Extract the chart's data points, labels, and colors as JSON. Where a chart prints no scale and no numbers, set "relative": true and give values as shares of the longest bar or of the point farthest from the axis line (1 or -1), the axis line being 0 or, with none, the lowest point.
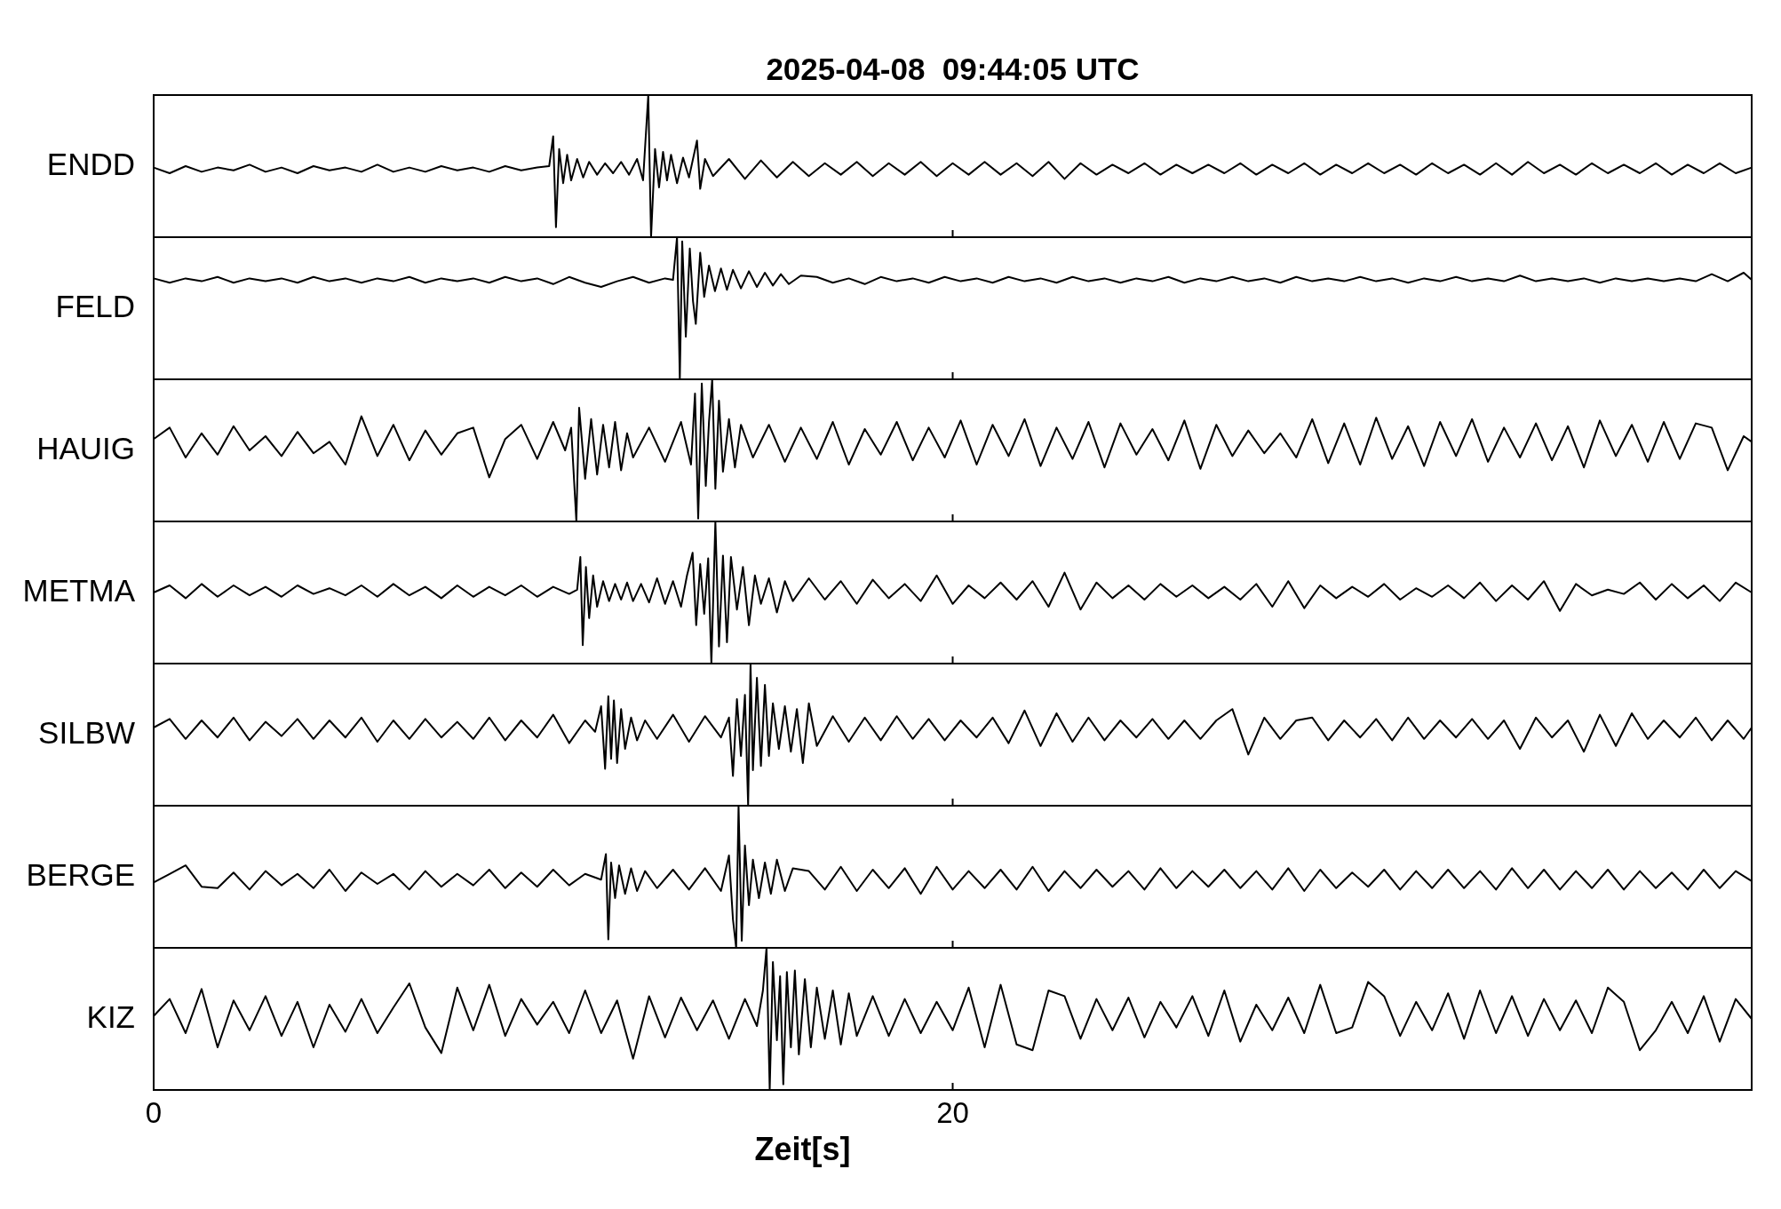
{
  "chart_data": [
    {
      "type": "line",
      "title": "2025-04-08  09:44:05 UTC",
      "ylabel": "ENDD",
      "relative": true,
      "color": "#000000",
      "xlim": [
        0,
        40
      ],
      "tick_labels": false,
      "x": [
        0,
        0.4,
        0.8,
        1.2,
        1.6,
        2,
        2.4,
        2.8,
        3.2,
        3.6,
        4,
        4.4,
        4.8,
        5.2,
        5.6,
        6,
        6.4,
        6.8,
        7.2,
        7.6,
        8,
        8.4,
        8.8,
        9.2,
        9.6,
        9.9,
        10,
        10.07,
        10.15,
        10.25,
        10.35,
        10.45,
        10.6,
        10.75,
        10.9,
        11.1,
        11.3,
        11.5,
        11.7,
        11.9,
        12.1,
        12.25,
        12.38,
        12.45,
        12.55,
        12.65,
        12.75,
        12.85,
        12.95,
        13.1,
        13.25,
        13.4,
        13.6,
        13.68,
        13.8,
        14,
        14.4,
        14.8,
        15.2,
        15.6,
        16,
        16.4,
        16.8,
        17.2,
        17.6,
        18,
        18.4,
        18.8,
        19.2,
        19.6,
        20,
        20.4,
        20.8,
        21.2,
        21.6,
        22,
        22.4,
        22.8,
        23.2,
        23.6,
        24,
        24.4,
        24.8,
        25.2,
        25.6,
        26,
        26.4,
        26.8,
        27.2,
        27.6,
        28,
        28.4,
        28.8,
        29.2,
        29.6,
        30,
        30.4,
        30.8,
        31.2,
        31.6,
        32,
        32.4,
        32.8,
        33.2,
        33.6,
        34,
        34.4,
        34.8,
        35.2,
        35.6,
        36,
        36.4,
        36.8,
        37.2,
        37.6,
        38,
        38.4,
        38.8,
        39.2,
        39.6,
        40
      ],
      "values": [
        0.49,
        0.45,
        0.5,
        0.46,
        0.49,
        0.47,
        0.51,
        0.46,
        0.49,
        0.45,
        0.5,
        0.47,
        0.49,
        0.46,
        0.51,
        0.46,
        0.49,
        0.46,
        0.5,
        0.47,
        0.49,
        0.46,
        0.5,
        0.47,
        0.49,
        0.5,
        0.71,
        0.07,
        0.62,
        0.38,
        0.58,
        0.4,
        0.55,
        0.42,
        0.53,
        0.44,
        0.52,
        0.45,
        0.53,
        0.44,
        0.55,
        0.4,
        1.0,
        0.0,
        0.62,
        0.35,
        0.6,
        0.4,
        0.58,
        0.38,
        0.56,
        0.42,
        0.68,
        0.34,
        0.55,
        0.43,
        0.55,
        0.41,
        0.54,
        0.42,
        0.53,
        0.43,
        0.52,
        0.44,
        0.53,
        0.43,
        0.52,
        0.44,
        0.53,
        0.43,
        0.52,
        0.44,
        0.53,
        0.44,
        0.52,
        0.43,
        0.53,
        0.41,
        0.52,
        0.44,
        0.51,
        0.45,
        0.52,
        0.44,
        0.51,
        0.45,
        0.51,
        0.45,
        0.52,
        0.44,
        0.51,
        0.45,
        0.52,
        0.44,
        0.51,
        0.45,
        0.52,
        0.45,
        0.51,
        0.44,
        0.52,
        0.45,
        0.51,
        0.44,
        0.52,
        0.44,
        0.53,
        0.45,
        0.51,
        0.44,
        0.52,
        0.45,
        0.51,
        0.45,
        0.52,
        0.44,
        0.51,
        0.45,
        0.52,
        0.45,
        0.49
      ]
    },
    {
      "type": "line",
      "ylabel": "FELD",
      "relative": true,
      "color": "#000000",
      "xlim": [
        0,
        40
      ],
      "tick_labels": false,
      "x": [
        0,
        0.4,
        0.8,
        1.2,
        1.6,
        2,
        2.4,
        2.8,
        3.2,
        3.6,
        4,
        4.4,
        4.8,
        5.2,
        5.6,
        6,
        6.4,
        6.8,
        7.2,
        7.6,
        8,
        8.4,
        8.8,
        9.2,
        9.6,
        10,
        10.4,
        10.8,
        11.2,
        11.6,
        12,
        12.4,
        12.8,
        13,
        13.1,
        13.17,
        13.23,
        13.32,
        13.42,
        13.5,
        13.57,
        13.68,
        13.78,
        13.9,
        14.05,
        14.2,
        14.35,
        14.5,
        14.7,
        14.9,
        15.1,
        15.3,
        15.5,
        15.7,
        15.9,
        16.2,
        16.6,
        17,
        17.4,
        17.8,
        18.2,
        18.6,
        19,
        19.4,
        19.8,
        20.2,
        20.6,
        21,
        21.4,
        21.8,
        22.2,
        22.6,
        23,
        23.4,
        23.8,
        24.2,
        24.6,
        25,
        25.4,
        25.8,
        26.2,
        26.6,
        27,
        27.4,
        27.8,
        28.2,
        28.6,
        29,
        29.4,
        29.8,
        30.2,
        30.6,
        31,
        31.4,
        31.8,
        32.2,
        32.6,
        33,
        33.4,
        33.8,
        34.2,
        34.6,
        35,
        35.4,
        35.8,
        36.2,
        36.6,
        37,
        37.4,
        37.8,
        38.2,
        38.6,
        39,
        39.4,
        39.8,
        40
      ],
      "values": [
        0.71,
        0.68,
        0.71,
        0.69,
        0.72,
        0.68,
        0.71,
        0.69,
        0.71,
        0.68,
        0.72,
        0.69,
        0.71,
        0.68,
        0.71,
        0.69,
        0.72,
        0.68,
        0.71,
        0.69,
        0.71,
        0.68,
        0.72,
        0.69,
        0.71,
        0.67,
        0.72,
        0.68,
        0.65,
        0.69,
        0.72,
        0.68,
        0.71,
        0.7,
        1.0,
        0.0,
        0.97,
        0.3,
        0.92,
        0.55,
        0.39,
        0.89,
        0.58,
        0.8,
        0.62,
        0.78,
        0.63,
        0.77,
        0.64,
        0.76,
        0.65,
        0.75,
        0.66,
        0.74,
        0.67,
        0.73,
        0.72,
        0.68,
        0.71,
        0.67,
        0.72,
        0.69,
        0.71,
        0.68,
        0.72,
        0.69,
        0.71,
        0.68,
        0.72,
        0.69,
        0.71,
        0.68,
        0.72,
        0.69,
        0.71,
        0.68,
        0.71,
        0.69,
        0.72,
        0.68,
        0.71,
        0.69,
        0.72,
        0.69,
        0.71,
        0.68,
        0.72,
        0.69,
        0.71,
        0.69,
        0.72,
        0.69,
        0.71,
        0.68,
        0.71,
        0.69,
        0.72,
        0.69,
        0.71,
        0.69,
        0.73,
        0.69,
        0.71,
        0.69,
        0.71,
        0.68,
        0.71,
        0.69,
        0.71,
        0.69,
        0.71,
        0.69,
        0.74,
        0.69,
        0.75,
        0.7
      ]
    },
    {
      "type": "line",
      "ylabel": "HAUIG",
      "relative": true,
      "color": "#000000",
      "xlim": [
        0,
        40
      ],
      "tick_labels": false,
      "x": [
        0,
        0.4,
        0.8,
        1.2,
        1.6,
        2,
        2.4,
        2.8,
        3.2,
        3.6,
        4,
        4.4,
        4.8,
        5.2,
        5.6,
        6,
        6.4,
        6.8,
        7.2,
        7.6,
        8,
        8.4,
        8.8,
        9.2,
        9.6,
        10,
        10.3,
        10.45,
        10.58,
        10.65,
        10.8,
        10.95,
        11.1,
        11.25,
        11.4,
        11.55,
        11.7,
        11.85,
        12,
        12.4,
        12.8,
        13.2,
        13.45,
        13.55,
        13.63,
        13.72,
        13.82,
        13.9,
        13.98,
        14.06,
        14.15,
        14.25,
        14.4,
        14.55,
        14.7,
        15,
        15.4,
        15.8,
        16.2,
        16.6,
        17,
        17.4,
        17.8,
        18.2,
        18.6,
        19,
        19.4,
        19.8,
        20.2,
        20.6,
        21,
        21.4,
        21.8,
        22.2,
        22.6,
        23,
        23.4,
        23.8,
        24.2,
        24.6,
        25,
        25.4,
        25.8,
        26.2,
        26.6,
        27,
        27.4,
        27.8,
        28.2,
        28.6,
        29,
        29.4,
        29.8,
        30.2,
        30.6,
        31,
        31.4,
        31.8,
        32.2,
        32.6,
        33,
        33.4,
        33.8,
        34.2,
        34.6,
        35,
        35.4,
        35.8,
        36.2,
        36.6,
        37,
        37.4,
        37.8,
        38.2,
        38.6,
        39,
        39.4,
        39.8,
        40
      ],
      "values": [
        0.58,
        0.66,
        0.45,
        0.62,
        0.47,
        0.67,
        0.5,
        0.6,
        0.46,
        0.63,
        0.48,
        0.56,
        0.4,
        0.74,
        0.46,
        0.68,
        0.43,
        0.64,
        0.47,
        0.62,
        0.66,
        0.31,
        0.58,
        0.68,
        0.44,
        0.7,
        0.5,
        0.66,
        0.0,
        0.8,
        0.3,
        0.72,
        0.33,
        0.68,
        0.38,
        0.7,
        0.36,
        0.62,
        0.45,
        0.66,
        0.42,
        0.7,
        0.4,
        0.9,
        0.02,
        0.97,
        0.25,
        0.7,
        1.0,
        0.23,
        0.85,
        0.35,
        0.72,
        0.38,
        0.68,
        0.45,
        0.68,
        0.42,
        0.66,
        0.44,
        0.7,
        0.4,
        0.65,
        0.47,
        0.7,
        0.43,
        0.66,
        0.45,
        0.71,
        0.4,
        0.68,
        0.46,
        0.72,
        0.39,
        0.66,
        0.44,
        0.7,
        0.38,
        0.69,
        0.47,
        0.65,
        0.43,
        0.71,
        0.37,
        0.68,
        0.46,
        0.64,
        0.48,
        0.62,
        0.45,
        0.72,
        0.41,
        0.69,
        0.4,
        0.73,
        0.44,
        0.67,
        0.39,
        0.7,
        0.46,
        0.72,
        0.42,
        0.66,
        0.45,
        0.69,
        0.43,
        0.67,
        0.38,
        0.71,
        0.46,
        0.68,
        0.42,
        0.7,
        0.44,
        0.69,
        0.66,
        0.36,
        0.6,
        0.56
      ]
    },
    {
      "type": "line",
      "ylabel": "METMA",
      "relative": true,
      "color": "#000000",
      "xlim": [
        0,
        40
      ],
      "tick_labels": false,
      "x": [
        0,
        0.4,
        0.8,
        1.2,
        1.6,
        2,
        2.4,
        2.8,
        3.2,
        3.6,
        4,
        4.4,
        4.8,
        5.2,
        5.6,
        6,
        6.4,
        6.8,
        7.2,
        7.6,
        8,
        8.4,
        8.8,
        9.2,
        9.6,
        10,
        10.4,
        10.6,
        10.68,
        10.74,
        10.82,
        10.9,
        11,
        11.1,
        11.25,
        11.4,
        11.55,
        11.7,
        11.85,
        12,
        12.2,
        12.4,
        12.6,
        12.8,
        13,
        13.2,
        13.35,
        13.49,
        13.58,
        13.68,
        13.78,
        13.88,
        13.96,
        14.06,
        14.15,
        14.25,
        14.35,
        14.45,
        14.6,
        14.75,
        14.9,
        15.05,
        15.2,
        15.4,
        15.6,
        15.8,
        16,
        16.4,
        16.8,
        17.2,
        17.6,
        18,
        18.4,
        18.8,
        19.2,
        19.6,
        20,
        20.4,
        20.8,
        21.2,
        21.6,
        22,
        22.4,
        22.8,
        23.2,
        23.6,
        24,
        24.4,
        24.8,
        25.2,
        25.6,
        26,
        26.4,
        26.8,
        27.2,
        27.6,
        28,
        28.4,
        28.8,
        29.2,
        29.6,
        30,
        30.4,
        30.8,
        31.2,
        31.6,
        32,
        32.4,
        32.8,
        33.2,
        33.6,
        34,
        34.4,
        34.8,
        35.2,
        35.6,
        36,
        36.4,
        36.8,
        37.2,
        37.6,
        38,
        38.4,
        38.8,
        39.2,
        39.6,
        40
      ],
      "values": [
        0.5,
        0.55,
        0.46,
        0.56,
        0.47,
        0.55,
        0.48,
        0.54,
        0.47,
        0.55,
        0.49,
        0.53,
        0.48,
        0.55,
        0.47,
        0.56,
        0.48,
        0.54,
        0.46,
        0.55,
        0.47,
        0.54,
        0.48,
        0.55,
        0.47,
        0.54,
        0.49,
        0.52,
        0.75,
        0.13,
        0.68,
        0.32,
        0.62,
        0.4,
        0.58,
        0.44,
        0.56,
        0.45,
        0.57,
        0.44,
        0.56,
        0.43,
        0.6,
        0.42,
        0.58,
        0.4,
        0.62,
        0.78,
        0.27,
        0.7,
        0.35,
        0.74,
        0.0,
        1.0,
        0.12,
        0.76,
        0.15,
        0.75,
        0.38,
        0.68,
        0.27,
        0.62,
        0.42,
        0.6,
        0.36,
        0.58,
        0.44,
        0.6,
        0.45,
        0.58,
        0.42,
        0.59,
        0.46,
        0.56,
        0.44,
        0.62,
        0.42,
        0.55,
        0.46,
        0.57,
        0.45,
        0.58,
        0.4,
        0.64,
        0.38,
        0.57,
        0.46,
        0.55,
        0.45,
        0.56,
        0.47,
        0.55,
        0.46,
        0.54,
        0.45,
        0.56,
        0.4,
        0.58,
        0.39,
        0.55,
        0.46,
        0.54,
        0.47,
        0.56,
        0.45,
        0.53,
        0.47,
        0.55,
        0.46,
        0.57,
        0.44,
        0.55,
        0.45,
        0.58,
        0.37,
        0.56,
        0.48,
        0.52,
        0.49,
        0.57,
        0.45,
        0.56,
        0.46,
        0.55,
        0.44,
        0.57,
        0.5
      ]
    },
    {
      "type": "line",
      "ylabel": "SILBW",
      "relative": true,
      "color": "#000000",
      "xlim": [
        0,
        40
      ],
      "tick_labels": false,
      "x": [
        0,
        0.4,
        0.8,
        1.2,
        1.6,
        2,
        2.4,
        2.8,
        3.2,
        3.6,
        4,
        4.4,
        4.8,
        5.2,
        5.6,
        6,
        6.4,
        6.8,
        7.2,
        7.6,
        8,
        8.4,
        8.8,
        9.2,
        9.6,
        10,
        10.4,
        10.8,
        11.05,
        11.2,
        11.3,
        11.38,
        11.45,
        11.52,
        11.6,
        11.7,
        11.8,
        11.95,
        12.1,
        12.3,
        12.6,
        13,
        13.4,
        13.8,
        14.2,
        14.4,
        14.5,
        14.6,
        14.7,
        14.8,
        14.88,
        14.94,
        15,
        15.1,
        15.2,
        15.3,
        15.4,
        15.5,
        15.65,
        15.8,
        15.95,
        16.1,
        16.25,
        16.4,
        16.6,
        17,
        17.4,
        17.8,
        18.2,
        18.6,
        19,
        19.4,
        19.8,
        20.2,
        20.6,
        21,
        21.4,
        21.8,
        22.2,
        22.6,
        23,
        23.4,
        23.8,
        24.2,
        24.6,
        25,
        25.4,
        25.8,
        26.2,
        26.6,
        27,
        27.4,
        27.8,
        28.2,
        28.6,
        29,
        29.4,
        29.8,
        30.2,
        30.6,
        31,
        31.4,
        31.8,
        32.2,
        32.6,
        33,
        33.4,
        33.8,
        34.2,
        34.6,
        35,
        35.4,
        35.8,
        36.2,
        36.6,
        37,
        37.4,
        37.8,
        38.2,
        38.6,
        39,
        39.4,
        39.8,
        40
      ],
      "values": [
        0.55,
        0.61,
        0.47,
        0.6,
        0.48,
        0.62,
        0.46,
        0.59,
        0.49,
        0.61,
        0.47,
        0.6,
        0.48,
        0.62,
        0.45,
        0.6,
        0.47,
        0.61,
        0.48,
        0.59,
        0.47,
        0.62,
        0.46,
        0.6,
        0.48,
        0.64,
        0.44,
        0.6,
        0.52,
        0.7,
        0.26,
        0.77,
        0.33,
        0.74,
        0.3,
        0.68,
        0.4,
        0.62,
        0.46,
        0.6,
        0.47,
        0.64,
        0.45,
        0.63,
        0.48,
        0.62,
        0.21,
        0.75,
        0.35,
        0.78,
        0.0,
        1.0,
        0.25,
        0.9,
        0.28,
        0.85,
        0.35,
        0.72,
        0.4,
        0.7,
        0.38,
        0.68,
        0.3,
        0.72,
        0.42,
        0.63,
        0.45,
        0.62,
        0.46,
        0.63,
        0.47,
        0.61,
        0.46,
        0.6,
        0.48,
        0.62,
        0.44,
        0.67,
        0.42,
        0.65,
        0.45,
        0.62,
        0.46,
        0.6,
        0.48,
        0.61,
        0.47,
        0.6,
        0.47,
        0.6,
        0.68,
        0.36,
        0.62,
        0.47,
        0.6,
        0.62,
        0.46,
        0.6,
        0.48,
        0.61,
        0.46,
        0.62,
        0.47,
        0.6,
        0.48,
        0.61,
        0.47,
        0.6,
        0.4,
        0.62,
        0.48,
        0.6,
        0.38,
        0.64,
        0.42,
        0.65,
        0.47,
        0.6,
        0.48,
        0.62,
        0.46,
        0.6,
        0.47,
        0.55
      ]
    },
    {
      "type": "line",
      "ylabel": "BERGE",
      "relative": true,
      "color": "#000000",
      "xlim": [
        0,
        40
      ],
      "tick_labels": false,
      "x": [
        0,
        0.4,
        0.8,
        1.2,
        1.6,
        2,
        2.4,
        2.8,
        3.2,
        3.6,
        4,
        4.4,
        4.8,
        5.2,
        5.6,
        6,
        6.4,
        6.8,
        7.2,
        7.6,
        8,
        8.4,
        8.8,
        9.2,
        9.6,
        10,
        10.4,
        10.8,
        11.2,
        11.32,
        11.38,
        11.45,
        11.55,
        11.65,
        11.8,
        11.95,
        12.1,
        12.3,
        12.6,
        13,
        13.4,
        13.8,
        14.2,
        14.4,
        14.5,
        14.58,
        14.64,
        14.72,
        14.8,
        14.9,
        15,
        15.15,
        15.3,
        15.45,
        15.6,
        15.8,
        16,
        16.4,
        16.8,
        17.2,
        17.6,
        18,
        18.4,
        18.8,
        19.2,
        19.6,
        20,
        20.4,
        20.8,
        21.2,
        21.6,
        22,
        22.4,
        22.8,
        23.2,
        23.6,
        24,
        24.4,
        24.8,
        25.2,
        25.6,
        26,
        26.4,
        26.8,
        27.2,
        27.6,
        28,
        28.4,
        28.8,
        29.2,
        29.6,
        30,
        30.4,
        30.8,
        31.2,
        31.6,
        32,
        32.4,
        32.8,
        33.2,
        33.6,
        34,
        34.4,
        34.8,
        35.2,
        35.6,
        36,
        36.4,
        36.8,
        37.2,
        37.6,
        38,
        38.4,
        38.8,
        39.2,
        39.6,
        40
      ],
      "values": [
        0.46,
        0.52,
        0.58,
        0.43,
        0.42,
        0.53,
        0.41,
        0.54,
        0.44,
        0.52,
        0.42,
        0.55,
        0.4,
        0.53,
        0.45,
        0.52,
        0.41,
        0.54,
        0.43,
        0.52,
        0.44,
        0.55,
        0.42,
        0.53,
        0.43,
        0.55,
        0.44,
        0.52,
        0.48,
        0.66,
        0.06,
        0.6,
        0.35,
        0.58,
        0.38,
        0.56,
        0.4,
        0.54,
        0.42,
        0.55,
        0.41,
        0.56,
        0.4,
        0.65,
        0.2,
        0.0,
        1.0,
        0.05,
        0.72,
        0.3,
        0.62,
        0.35,
        0.6,
        0.38,
        0.62,
        0.4,
        0.56,
        0.54,
        0.41,
        0.57,
        0.4,
        0.55,
        0.42,
        0.56,
        0.38,
        0.57,
        0.41,
        0.54,
        0.42,
        0.55,
        0.41,
        0.57,
        0.4,
        0.54,
        0.42,
        0.55,
        0.43,
        0.54,
        0.41,
        0.56,
        0.42,
        0.54,
        0.43,
        0.55,
        0.42,
        0.54,
        0.41,
        0.56,
        0.4,
        0.55,
        0.42,
        0.53,
        0.43,
        0.55,
        0.41,
        0.54,
        0.42,
        0.55,
        0.42,
        0.54,
        0.41,
        0.56,
        0.42,
        0.55,
        0.41,
        0.54,
        0.42,
        0.55,
        0.41,
        0.54,
        0.42,
        0.53,
        0.41,
        0.55,
        0.42,
        0.54,
        0.47
      ]
    },
    {
      "type": "line",
      "ylabel": "KIZ",
      "xlabel": "Zeit[s]",
      "relative": true,
      "color": "#000000",
      "xlim": [
        0,
        40
      ],
      "xticks": [
        0,
        20
      ],
      "tick_labels": "x",
      "x": [
        0,
        0.4,
        0.8,
        1.2,
        1.6,
        2,
        2.4,
        2.8,
        3.2,
        3.6,
        4,
        4.4,
        4.8,
        5.2,
        5.6,
        6,
        6.4,
        6.8,
        7.2,
        7.6,
        8,
        8.4,
        8.8,
        9.2,
        9.6,
        10,
        10.4,
        10.8,
        11.2,
        11.6,
        12,
        12.4,
        12.8,
        13.2,
        13.6,
        14,
        14.4,
        14.8,
        15.1,
        15.25,
        15.34,
        15.42,
        15.5,
        15.6,
        15.68,
        15.76,
        15.85,
        15.95,
        16.05,
        16.15,
        16.3,
        16.45,
        16.6,
        16.8,
        17,
        17.2,
        17.4,
        17.6,
        18,
        18.4,
        18.8,
        19.2,
        19.6,
        20,
        20.4,
        20.8,
        21.2,
        21.6,
        22,
        22.4,
        22.8,
        23.2,
        23.6,
        24,
        24.4,
        24.8,
        25.2,
        25.6,
        26,
        26.4,
        26.8,
        27.2,
        27.6,
        28,
        28.4,
        28.8,
        29.2,
        29.6,
        30,
        30.4,
        30.8,
        31.2,
        31.6,
        32,
        32.4,
        32.8,
        33.2,
        33.6,
        34,
        34.4,
        34.8,
        35.2,
        35.6,
        36,
        36.4,
        36.8,
        37.2,
        37.6,
        38,
        38.4,
        38.8,
        39.2,
        39.6,
        40
      ],
      "values": [
        0.52,
        0.64,
        0.4,
        0.71,
        0.3,
        0.63,
        0.42,
        0.66,
        0.38,
        0.62,
        0.3,
        0.6,
        0.41,
        0.64,
        0.4,
        0.58,
        0.75,
        0.44,
        0.26,
        0.72,
        0.42,
        0.74,
        0.38,
        0.64,
        0.46,
        0.62,
        0.4,
        0.7,
        0.4,
        0.63,
        0.22,
        0.66,
        0.37,
        0.65,
        0.42,
        0.63,
        0.36,
        0.64,
        0.45,
        0.7,
        1.0,
        0.0,
        0.9,
        0.35,
        0.8,
        0.04,
        0.83,
        0.3,
        0.84,
        0.25,
        0.78,
        0.3,
        0.72,
        0.36,
        0.7,
        0.32,
        0.68,
        0.38,
        0.66,
        0.38,
        0.64,
        0.4,
        0.62,
        0.42,
        0.72,
        0.3,
        0.74,
        0.32,
        0.28,
        0.7,
        0.66,
        0.36,
        0.64,
        0.42,
        0.65,
        0.37,
        0.62,
        0.44,
        0.66,
        0.38,
        0.7,
        0.34,
        0.6,
        0.42,
        0.65,
        0.4,
        0.74,
        0.4,
        0.44,
        0.76,
        0.66,
        0.38,
        0.62,
        0.42,
        0.68,
        0.36,
        0.7,
        0.4,
        0.66,
        0.38,
        0.64,
        0.42,
        0.63,
        0.4,
        0.72,
        0.62,
        0.28,
        0.42,
        0.62,
        0.4,
        0.66,
        0.34,
        0.64,
        0.5
      ]
    }
  ]
}
